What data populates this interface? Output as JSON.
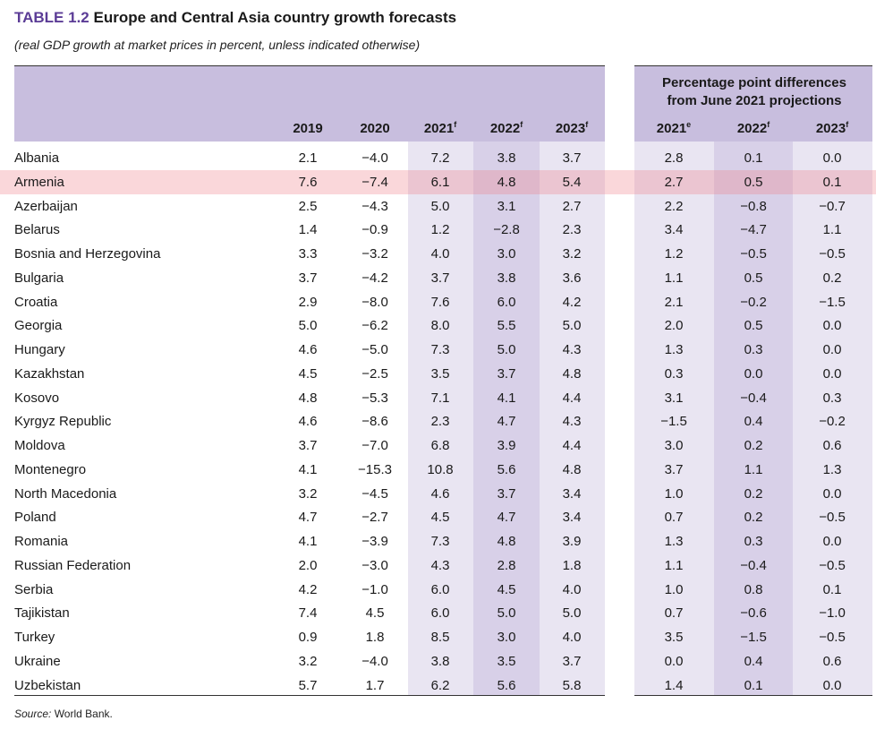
{
  "table": {
    "label": "TABLE 1.2",
    "title": "Europe and Central Asia country growth forecasts",
    "subtitle": "(real GDP growth at market prices in percent, unless indicated otherwise)",
    "diff_header_line1": "Percentage point differences",
    "diff_header_line2": "from June 2021 projections",
    "columns": [
      {
        "year": "2019",
        "sup": ""
      },
      {
        "year": "2020",
        "sup": ""
      },
      {
        "year": "2021",
        "sup": "f"
      },
      {
        "year": "2022",
        "sup": "f"
      },
      {
        "year": "2023",
        "sup": "f"
      },
      {
        "year": "2021",
        "sup": "e"
      },
      {
        "year": "2022",
        "sup": "f"
      },
      {
        "year": "2023",
        "sup": "f"
      }
    ],
    "rows": [
      {
        "country": "Albania",
        "values": [
          "2.1",
          "−4.0",
          "7.2",
          "3.8",
          "3.7",
          "2.8",
          "0.1",
          "0.0"
        ]
      },
      {
        "country": "Armenia",
        "values": [
          "7.6",
          "−7.4",
          "6.1",
          "4.8",
          "5.4",
          "2.7",
          "0.5",
          "0.1"
        ]
      },
      {
        "country": "Azerbaijan",
        "values": [
          "2.5",
          "−4.3",
          "5.0",
          "3.1",
          "2.7",
          "2.2",
          "−0.8",
          "−0.7"
        ]
      },
      {
        "country": "Belarus",
        "values": [
          "1.4",
          "−0.9",
          "1.2",
          "−2.8",
          "2.3",
          "3.4",
          "−4.7",
          "1.1"
        ]
      },
      {
        "country": "Bosnia and Herzegovina",
        "values": [
          "3.3",
          "−3.2",
          "4.0",
          "3.0",
          "3.2",
          "1.2",
          "−0.5",
          "−0.5"
        ]
      },
      {
        "country": "Bulgaria",
        "values": [
          "3.7",
          "−4.2",
          "3.7",
          "3.8",
          "3.6",
          "1.1",
          "0.5",
          "0.2"
        ]
      },
      {
        "country": "Croatia",
        "values": [
          "2.9",
          "−8.0",
          "7.6",
          "6.0",
          "4.2",
          "2.1",
          "−0.2",
          "−1.5"
        ]
      },
      {
        "country": "Georgia",
        "values": [
          "5.0",
          "−6.2",
          "8.0",
          "5.5",
          "5.0",
          "2.0",
          "0.5",
          "0.0"
        ]
      },
      {
        "country": "Hungary",
        "values": [
          "4.6",
          "−5.0",
          "7.3",
          "5.0",
          "4.3",
          "1.3",
          "0.3",
          "0.0"
        ]
      },
      {
        "country": "Kazakhstan",
        "values": [
          "4.5",
          "−2.5",
          "3.5",
          "3.7",
          "4.8",
          "0.3",
          "0.0",
          "0.0"
        ]
      },
      {
        "country": "Kosovo",
        "values": [
          "4.8",
          "−5.3",
          "7.1",
          "4.1",
          "4.4",
          "3.1",
          "−0.4",
          "0.3"
        ]
      },
      {
        "country": "Kyrgyz Republic",
        "values": [
          "4.6",
          "−8.6",
          "2.3",
          "4.7",
          "4.3",
          "−1.5",
          "0.4",
          "−0.2"
        ]
      },
      {
        "country": "Moldova",
        "values": [
          "3.7",
          "−7.0",
          "6.8",
          "3.9",
          "4.4",
          "3.0",
          "0.2",
          "0.6"
        ]
      },
      {
        "country": "Montenegro",
        "values": [
          "4.1",
          "−15.3",
          "10.8",
          "5.6",
          "4.8",
          "3.7",
          "1.1",
          "1.3"
        ]
      },
      {
        "country": "North Macedonia",
        "values": [
          "3.2",
          "−4.5",
          "4.6",
          "3.7",
          "3.4",
          "1.0",
          "0.2",
          "0.0"
        ]
      },
      {
        "country": "Poland",
        "values": [
          "4.7",
          "−2.7",
          "4.5",
          "4.7",
          "3.4",
          "0.7",
          "0.2",
          "−0.5"
        ]
      },
      {
        "country": "Romania",
        "values": [
          "4.1",
          "−3.9",
          "7.3",
          "4.8",
          "3.9",
          "1.3",
          "0.3",
          "0.0"
        ]
      },
      {
        "country": "Russian Federation",
        "values": [
          "2.0",
          "−3.0",
          "4.3",
          "2.8",
          "1.8",
          "1.1",
          "−0.4",
          "−0.5"
        ]
      },
      {
        "country": "Serbia",
        "values": [
          "4.2",
          "−1.0",
          "6.0",
          "4.5",
          "4.0",
          "1.0",
          "0.8",
          "0.1"
        ]
      },
      {
        "country": "Tajikistan",
        "values": [
          "7.4",
          "4.5",
          "6.0",
          "5.0",
          "5.0",
          "0.7",
          "−0.6",
          "−1.0"
        ]
      },
      {
        "country": "Turkey",
        "values": [
          "0.9",
          "1.8",
          "8.5",
          "3.0",
          "4.0",
          "3.5",
          "−1.5",
          "−0.5"
        ]
      },
      {
        "country": "Ukraine",
        "values": [
          "3.2",
          "−4.0",
          "3.8",
          "3.5",
          "3.7",
          "0.0",
          "0.4",
          "0.6"
        ]
      },
      {
        "country": "Uzbekistan",
        "values": [
          "5.7",
          "1.7",
          "6.2",
          "5.6",
          "5.8",
          "1.4",
          "0.1",
          "0.0"
        ]
      }
    ],
    "highlighted_row": "Armenia",
    "source_label": "Source:",
    "source_text": " World Bank."
  },
  "colors": {
    "title_label": "#5b3c96",
    "header_band": "#c8bede",
    "forecast_col_light": "#e9e5f2",
    "forecast_col_medium": "#d8d0e8",
    "highlight_row": "#f4c6cb"
  }
}
